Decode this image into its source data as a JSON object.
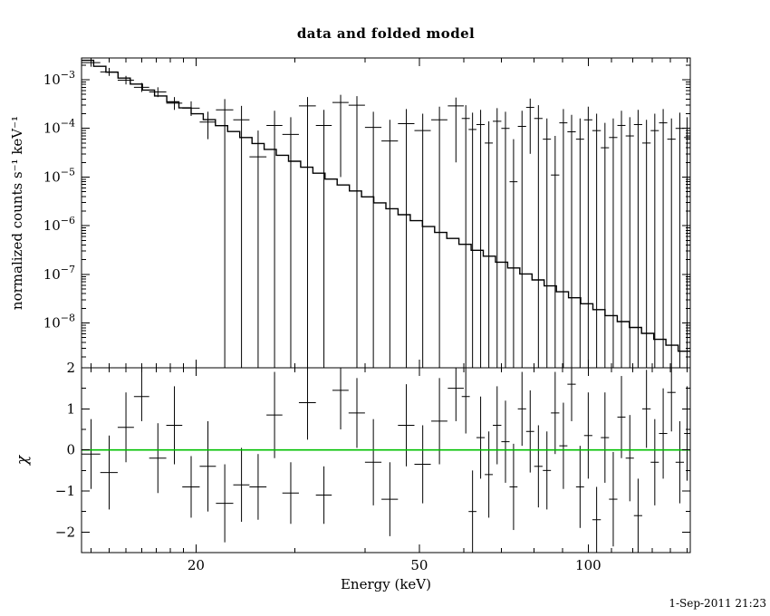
{
  "page": {
    "title": "data and folded model",
    "timestamp": "1-Sep-2011 21:23"
  },
  "chart_data": [
    {
      "type": "line",
      "panel": "spectrum",
      "title": "data and folded model",
      "xlabel": "Energy (keV)",
      "ylabel": "normalized counts s⁻¹ keV⁻¹",
      "xscale": "log",
      "yscale": "log",
      "xlim": [
        12.5,
        152
      ],
      "ylim": [
        1.2e-09,
        0.0028
      ],
      "x_major_ticks": [
        20,
        50,
        100
      ],
      "y_major_tick_exponents": [
        -3,
        -4,
        -5,
        -6,
        -7,
        -8
      ],
      "grid": false,
      "legend": "none",
      "model": {
        "style": "histogram-steps",
        "color": "#000000",
        "e_start": 12.5,
        "e_end": 152,
        "values": [
          0.0025,
          0.00189,
          0.00143,
          0.00108,
          0.000813,
          0.000614,
          0.000464,
          0.00035,
          0.000264,
          0.0002,
          0.000151,
          0.000114,
          8.6e-05,
          6.49e-05,
          4.9e-05,
          3.7e-05,
          2.8e-05,
          2.11e-05,
          1.59e-05,
          1.2e-05,
          9.09e-06,
          6.86e-06,
          5.18e-06,
          3.91e-06,
          2.95e-06,
          2.23e-06,
          1.68e-06,
          1.27e-06,
          9.61e-07,
          7.26e-07,
          5.48e-07,
          4.14e-07,
          3.12e-07,
          2.36e-07,
          1.78e-07,
          1.35e-07,
          1.02e-07,
          7.67e-08,
          5.79e-08,
          4.37e-08,
          3.3e-08,
          2.49e-08,
          1.88e-08,
          1.42e-08,
          1.07e-08,
          8.1e-09,
          6.11e-09,
          4.62e-09,
          3.49e-09,
          2.63e-09
        ]
      },
      "points_format": [
        "energy_keV",
        "energy_halfwidth_keV",
        "value",
        "errbar_low",
        "errbar_high"
      ],
      "points": [
        [
          13.0,
          0.5,
          0.00225,
          0.00185,
          0.0027
        ],
        [
          14.0,
          0.5,
          0.00145,
          0.0012,
          0.00175
        ],
        [
          15.0,
          0.5,
          0.00098,
          0.0008,
          0.0012
        ],
        [
          16.0,
          0.5,
          0.0007,
          0.00056,
          0.00086
        ],
        [
          17.1,
          0.6,
          0.00056,
          0.00044,
          0.0007
        ],
        [
          18.3,
          0.6,
          0.00033,
          0.00024,
          0.00044
        ],
        [
          19.6,
          0.7,
          0.00026,
          0.00018,
          0.00036
        ],
        [
          21.0,
          0.7,
          0.000135,
          6e-05,
          0.00022
        ],
        [
          22.5,
          0.8,
          0.00024,
          1e-10,
          0.0004
        ],
        [
          24.1,
          0.8,
          0.00015,
          1e-10,
          0.00029
        ],
        [
          25.8,
          0.9,
          2.6e-05,
          1e-10,
          9e-05
        ],
        [
          27.6,
          0.9,
          0.000115,
          1e-10,
          0.00023
        ],
        [
          29.5,
          1.0,
          7.5e-05,
          1e-10,
          0.00017
        ],
        [
          31.6,
          1.1,
          0.00029,
          1e-10,
          0.00044
        ],
        [
          33.8,
          1.1,
          0.000115,
          1e-10,
          0.00024
        ],
        [
          36.2,
          1.2,
          0.00034,
          1e-05,
          0.00049
        ],
        [
          38.7,
          1.3,
          0.0003,
          1e-10,
          0.00046
        ],
        [
          41.4,
          1.4,
          0.000105,
          1e-10,
          0.00022
        ],
        [
          44.3,
          1.5,
          5.5e-05,
          1e-10,
          0.00015
        ],
        [
          47.4,
          1.6,
          0.000125,
          1e-10,
          0.00025
        ],
        [
          50.7,
          1.7,
          9e-05,
          1e-10,
          0.0002
        ],
        [
          54.3,
          1.8,
          0.00015,
          1e-10,
          0.00028
        ],
        [
          58.1,
          1.9,
          0.00029,
          2e-05,
          0.00043
        ],
        [
          60.5,
          1.0,
          0.00016,
          1e-10,
          0.0003
        ],
        [
          62.2,
          1.0,
          9.5e-05,
          1e-10,
          0.00021
        ],
        [
          64.3,
          1.1,
          0.00012,
          1e-10,
          0.00024
        ],
        [
          66.5,
          1.1,
          5e-05,
          1e-10,
          0.00014
        ],
        [
          68.8,
          1.2,
          0.00014,
          1e-10,
          0.00026
        ],
        [
          71.2,
          1.2,
          0.0001,
          1e-10,
          0.00022
        ],
        [
          73.6,
          1.2,
          8e-06,
          1e-10,
          6e-05
        ],
        [
          76.2,
          1.3,
          0.00011,
          1e-10,
          0.00023
        ],
        [
          78.8,
          1.3,
          0.00027,
          3e-05,
          0.00041
        ],
        [
          81.5,
          1.4,
          0.00016,
          1e-10,
          0.0003
        ],
        [
          84.4,
          1.4,
          6e-05,
          1e-10,
          0.00016
        ],
        [
          87.3,
          1.5,
          1.1e-05,
          1e-10,
          7e-05
        ],
        [
          90.3,
          1.5,
          0.00013,
          1e-10,
          0.00025
        ],
        [
          93.4,
          1.6,
          8.5e-05,
          1e-10,
          0.00019
        ],
        [
          96.7,
          1.6,
          6e-05,
          1e-10,
          0.00016
        ],
        [
          100.0,
          1.7,
          0.00015,
          1e-10,
          0.00028
        ],
        [
          103.5,
          1.8,
          9e-05,
          1e-10,
          0.0002
        ],
        [
          107.1,
          1.8,
          4e-05,
          1e-10,
          0.00013
        ],
        [
          110.8,
          1.9,
          6.5e-05,
          1e-10,
          0.00016
        ],
        [
          114.6,
          1.9,
          0.000115,
          1e-10,
          0.00023
        ],
        [
          118.6,
          2.0,
          7e-05,
          1e-10,
          0.00017
        ],
        [
          122.7,
          2.1,
          0.00012,
          1e-10,
          0.00024
        ],
        [
          127.0,
          2.2,
          5e-05,
          1e-10,
          0.00015
        ],
        [
          131.4,
          2.2,
          9e-05,
          1e-10,
          0.0002
        ],
        [
          136.0,
          2.3,
          0.00013,
          1e-10,
          0.00025
        ],
        [
          140.7,
          2.4,
          6e-05,
          1e-10,
          0.00016
        ],
        [
          145.6,
          2.5,
          0.0001,
          1e-10,
          0.00021
        ],
        [
          150.0,
          1.8,
          6.5e-05,
          1e-10,
          0.00017
        ]
      ]
    },
    {
      "type": "scatter",
      "panel": "residuals",
      "ylabel": "χ",
      "xscale": "log",
      "yscale": "linear",
      "xlim": [
        12.5,
        152
      ],
      "ylim": [
        -2.5,
        2
      ],
      "y_major_ticks": [
        -2,
        -1,
        0,
        1,
        2
      ],
      "zero_line": {
        "y": 0,
        "color": "#00c000"
      },
      "points_format": [
        "energy_keV",
        "energy_halfwidth_keV",
        "chi",
        "chi_err"
      ],
      "points": [
        [
          13.0,
          0.5,
          -0.1,
          0.85
        ],
        [
          14.0,
          0.5,
          -0.55,
          0.9
        ],
        [
          15.0,
          0.5,
          0.55,
          0.85
        ],
        [
          16.0,
          0.5,
          1.3,
          0.6
        ],
        [
          17.1,
          0.6,
          -0.2,
          0.85
        ],
        [
          18.3,
          0.6,
          0.6,
          0.95
        ],
        [
          19.6,
          0.7,
          -0.9,
          0.75
        ],
        [
          21.0,
          0.7,
          -0.4,
          1.1
        ],
        [
          22.5,
          0.8,
          -1.3,
          0.95
        ],
        [
          24.1,
          0.8,
          -0.85,
          0.9
        ],
        [
          25.8,
          0.9,
          -0.9,
          0.8
        ],
        [
          27.6,
          0.9,
          0.85,
          1.05
        ],
        [
          29.5,
          1.0,
          -1.05,
          0.75
        ],
        [
          31.6,
          1.1,
          1.15,
          0.9
        ],
        [
          33.8,
          1.1,
          -1.1,
          0.7
        ],
        [
          36.2,
          1.2,
          1.45,
          0.95
        ],
        [
          38.7,
          1.3,
          0.9,
          0.85
        ],
        [
          41.4,
          1.4,
          -0.3,
          1.05
        ],
        [
          44.3,
          1.5,
          -1.2,
          0.9
        ],
        [
          47.4,
          1.6,
          0.6,
          1.0
        ],
        [
          50.7,
          1.7,
          -0.35,
          0.95
        ],
        [
          54.3,
          1.8,
          0.7,
          1.05
        ],
        [
          58.1,
          1.9,
          1.5,
          0.8
        ],
        [
          60.5,
          1.0,
          1.3,
          0.9
        ],
        [
          62.2,
          1.0,
          -1.5,
          1.0
        ],
        [
          64.3,
          1.1,
          0.3,
          1.0
        ],
        [
          66.5,
          1.1,
          -0.6,
          1.05
        ],
        [
          68.8,
          1.2,
          0.6,
          0.95
        ],
        [
          71.2,
          1.2,
          0.2,
          1.0
        ],
        [
          73.6,
          1.2,
          -0.9,
          1.05
        ],
        [
          76.2,
          1.3,
          1.0,
          0.9
        ],
        [
          78.8,
          1.3,
          0.45,
          1.0
        ],
        [
          81.5,
          1.4,
          -0.4,
          1.0
        ],
        [
          84.4,
          1.4,
          -0.5,
          0.95
        ],
        [
          87.3,
          1.5,
          0.9,
          1.0
        ],
        [
          90.3,
          1.5,
          0.1,
          1.05
        ],
        [
          93.4,
          1.6,
          1.6,
          0.9
        ],
        [
          96.7,
          1.6,
          -0.9,
          1.0
        ],
        [
          100.0,
          1.7,
          0.35,
          1.05
        ],
        [
          103.5,
          1.8,
          -1.7,
          0.8
        ],
        [
          107.1,
          1.8,
          0.3,
          1.1
        ],
        [
          110.8,
          1.9,
          -1.2,
          1.15
        ],
        [
          114.6,
          1.9,
          0.8,
          1.0
        ],
        [
          118.6,
          2.0,
          -0.2,
          1.05
        ],
        [
          122.7,
          2.1,
          -1.6,
          0.9
        ],
        [
          127.0,
          2.2,
          1.0,
          0.95
        ],
        [
          131.4,
          2.2,
          -0.3,
          1.05
        ],
        [
          136.0,
          2.3,
          0.4,
          1.1
        ],
        [
          140.7,
          2.4,
          1.4,
          0.95
        ],
        [
          145.6,
          2.5,
          -0.3,
          1.0
        ],
        [
          150.0,
          1.8,
          0.4,
          1.15
        ]
      ]
    }
  ]
}
